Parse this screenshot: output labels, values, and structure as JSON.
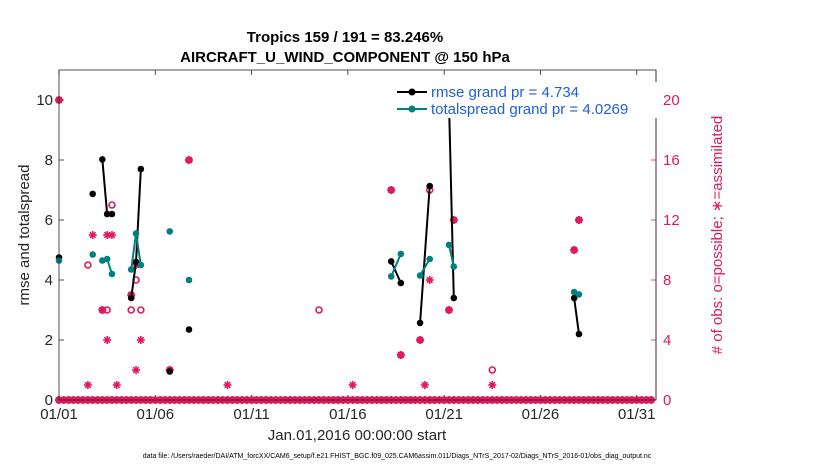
{
  "chart_data": {
    "type": "line",
    "title": "Tropics 159 / 191 = 83.246%",
    "subtitle": "AIRCRAFT_U_WIND_COMPONENT @ 150 hPa",
    "xlabel": "Jan.01,2016 00:00:00 start",
    "ylabel": "rmse and totalspread",
    "ylabel_right": "# of obs: o=possible; ∗=assimilated",
    "x_tick_labels": [
      "01/01",
      "01/06",
      "01/11",
      "01/16",
      "01/21",
      "01/26",
      "01/31"
    ],
    "x_tick_days": [
      1,
      6,
      11,
      16,
      21,
      26,
      31
    ],
    "xlim": [
      1,
      32
    ],
    "ylim": [
      0,
      11
    ],
    "yticks": [
      0,
      2,
      4,
      6,
      8,
      10
    ],
    "ylim_right": [
      0,
      22
    ],
    "yticks_right": [
      0,
      4,
      8,
      12,
      16,
      20
    ],
    "footnote": "data file: /Users/raeder/DAI/ATM_forcXX/CAM6_setup/f.e21.FHIST_BGC.f09_025.CAM6assim.011/Diags_NTrS_2017-02/Diags_NTrS_2016-01/obs_diag_output.nc",
    "colors": {
      "rmse": "#000000",
      "spread": "#008080",
      "obs": "#e0195a",
      "legend_text": "#1f5fd6"
    },
    "series": [
      {
        "name": "rmse grand pr = 4.734",
        "segments": [
          [
            [
              1.0,
              4.75
            ]
          ],
          [
            [
              2.75,
              6.87
            ]
          ],
          [
            [
              3.25,
              8.02
            ],
            [
              3.5,
              6.2
            ],
            [
              3.75,
              6.2
            ]
          ],
          [
            [
              4.75,
              3.4
            ],
            [
              5.0,
              4.6
            ],
            [
              5.25,
              7.7
            ]
          ],
          [
            [
              6.75,
              0.95
            ]
          ],
          [
            [
              7.75,
              2.35
            ]
          ],
          [
            [
              18.25,
              4.62
            ],
            [
              18.75,
              3.9
            ]
          ],
          [
            [
              19.75,
              2.57
            ],
            [
              20.25,
              7.13
            ]
          ],
          [
            [
              21.25,
              9.95
            ],
            [
              21.5,
              3.4
            ]
          ],
          [
            [
              27.75,
              3.4
            ],
            [
              28.0,
              2.2
            ]
          ]
        ]
      },
      {
        "name": "totalspread grand pr = 4.0269",
        "segments": [
          [
            [
              1.0,
              4.65
            ]
          ],
          [
            [
              2.75,
              4.85
            ]
          ],
          [
            [
              3.25,
              4.65
            ],
            [
              3.5,
              4.7
            ],
            [
              3.75,
              4.2
            ]
          ],
          [
            [
              4.75,
              4.35
            ],
            [
              5.0,
              5.55
            ],
            [
              5.25,
              4.5
            ]
          ],
          [
            [
              6.75,
              5.62
            ]
          ],
          [
            [
              7.75,
              4.0
            ]
          ],
          [
            [
              18.25,
              4.12
            ],
            [
              18.75,
              4.87
            ]
          ],
          [
            [
              19.75,
              4.15
            ],
            [
              20.25,
              4.7
            ]
          ],
          [
            [
              21.25,
              5.17
            ],
            [
              21.5,
              4.45
            ]
          ],
          [
            [
              27.75,
              3.6
            ],
            [
              28.0,
              3.52
            ]
          ]
        ]
      }
    ],
    "obs_possible": [
      [
        1.0,
        20
      ],
      [
        2.5,
        9
      ],
      [
        3.25,
        6
      ],
      [
        3.5,
        6
      ],
      [
        3.75,
        13
      ],
      [
        4.75,
        7
      ],
      [
        4.75,
        6
      ],
      [
        5.0,
        8
      ],
      [
        5.25,
        6
      ],
      [
        6.75,
        2
      ],
      [
        7.75,
        16
      ],
      [
        14.5,
        6
      ],
      [
        18.25,
        14
      ],
      [
        18.75,
        3
      ],
      [
        19.75,
        4
      ],
      [
        20.25,
        14
      ],
      [
        21.25,
        6
      ],
      [
        21.5,
        12
      ],
      [
        23.5,
        2
      ],
      [
        27.75,
        10
      ],
      [
        28.0,
        12
      ]
    ],
    "obs_assimilated": [
      [
        1.0,
        20
      ],
      [
        2.5,
        1
      ],
      [
        2.75,
        11
      ],
      [
        3.25,
        6
      ],
      [
        3.5,
        4
      ],
      [
        3.5,
        11
      ],
      [
        3.75,
        11
      ],
      [
        4.0,
        1
      ],
      [
        4.75,
        7
      ],
      [
        5.0,
        2
      ],
      [
        5.0,
        9
      ],
      [
        5.25,
        4
      ],
      [
        6.75,
        2
      ],
      [
        7.75,
        16
      ],
      [
        9.75,
        1
      ],
      [
        16.25,
        1
      ],
      [
        18.25,
        14
      ],
      [
        18.75,
        3
      ],
      [
        19.75,
        4
      ],
      [
        20.0,
        1
      ],
      [
        20.25,
        8
      ],
      [
        21.25,
        6
      ],
      [
        21.5,
        12
      ],
      [
        23.5,
        1
      ],
      [
        27.75,
        10
      ],
      [
        28.0,
        12
      ]
    ],
    "obs_zero_range": [
      1.0,
      31.75
    ],
    "obs_zero_step": 0.25
  }
}
